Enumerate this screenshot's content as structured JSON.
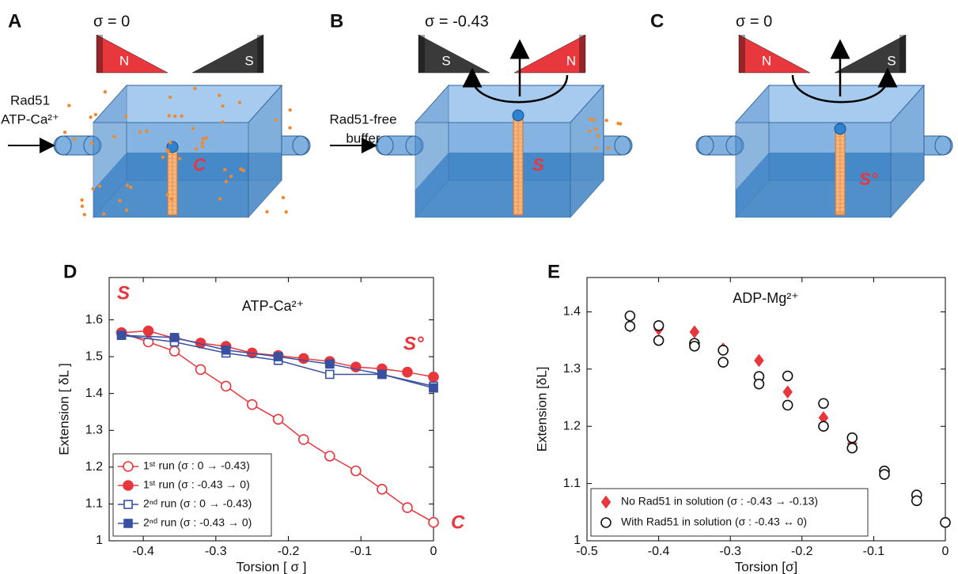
{
  "diagrams": [
    {
      "label": "A",
      "sigma": "σ = 0",
      "magnets": [
        {
          "text": "N",
          "color": "#e8383d"
        },
        {
          "text": "S",
          "color": "#3a3a3a"
        }
      ],
      "inlet": [
        "Rad51",
        "ATP-Ca²⁺"
      ],
      "state": "C"
    },
    {
      "label": "B",
      "sigma": "σ = -0.43",
      "magnets": [
        {
          "text": "S",
          "color": "#3a3a3a"
        },
        {
          "text": "N",
          "color": "#e8383d"
        }
      ],
      "inlet": [
        "Rad51-free",
        "buffer"
      ],
      "state": "S"
    },
    {
      "label": "C",
      "sigma": "σ = 0",
      "magnets": [
        {
          "text": "N",
          "color": "#e8383d"
        },
        {
          "text": "S",
          "color": "#3a3a3a"
        }
      ],
      "state": "S°"
    }
  ],
  "chart_data": [
    {
      "type": "line",
      "panel": "D",
      "title": "ATP-Ca²⁺",
      "xlabel": "Torsion [ σ ]",
      "ylabel": "Extension [ δL ]",
      "xlim": [
        -0.447,
        0
      ],
      "xticks": [
        -0.4,
        -0.3,
        -0.2,
        -0.1,
        0
      ],
      "ylim": [
        1,
        1.715
      ],
      "yticks": [
        1,
        1.1,
        1.2,
        1.3,
        1.4,
        1.5,
        1.6
      ],
      "annotations": [
        "S",
        "S°",
        "C"
      ],
      "annotation_color": "#e8363c",
      "legend": "lower left",
      "series": [
        {
          "name": "1ˢᵗ run (σ : 0 → -0.43)",
          "color": "#e8363c",
          "marker": "circle",
          "filled": false,
          "line": true,
          "x": [
            -0.43,
            -0.393,
            -0.357,
            -0.321,
            -0.286,
            -0.25,
            -0.214,
            -0.179,
            -0.143,
            -0.107,
            -0.071,
            -0.036,
            0
          ],
          "values": [
            1.565,
            1.54,
            1.515,
            1.465,
            1.42,
            1.37,
            1.33,
            1.275,
            1.23,
            1.19,
            1.14,
            1.09,
            1.05
          ]
        },
        {
          "name": "1ˢᵗ run (σ : -0.43 → 0)",
          "color": "#e8363c",
          "marker": "circle",
          "filled": true,
          "line": true,
          "x": [
            -0.43,
            -0.393,
            -0.357,
            -0.321,
            -0.286,
            -0.25,
            -0.214,
            -0.179,
            -0.143,
            -0.107,
            -0.071,
            -0.036,
            0
          ],
          "values": [
            1.565,
            1.57,
            1.55,
            1.537,
            1.528,
            1.51,
            1.503,
            1.495,
            1.487,
            1.472,
            1.467,
            1.458,
            1.445
          ]
        },
        {
          "name": "2ⁿᵈ run (σ : 0 → -0.43)",
          "color": "#3850a0",
          "marker": "square",
          "filled": false,
          "line": true,
          "x": [
            -0.43,
            -0.357,
            -0.286,
            -0.214,
            -0.143,
            -0.071,
            0
          ],
          "values": [
            1.558,
            1.54,
            1.51,
            1.49,
            1.452,
            1.452,
            1.42
          ]
        },
        {
          "name": "2ⁿᵈ run (σ : -0.43 → 0)",
          "color": "#3850a0",
          "marker": "square",
          "filled": true,
          "line": true,
          "x": [
            -0.43,
            -0.357,
            -0.286,
            -0.214,
            -0.143,
            -0.071,
            0
          ],
          "values": [
            1.558,
            1.552,
            1.518,
            1.5,
            1.48,
            1.452,
            1.415
          ]
        }
      ]
    },
    {
      "type": "scatter",
      "panel": "E",
      "title": "ADP-Mg²⁺",
      "xlabel": "Torsion [σ]",
      "ylabel": "Extension [δL]",
      "xlim": [
        -0.5,
        0
      ],
      "xticks": [
        -0.5,
        -0.4,
        -0.3,
        -0.2,
        -0.1,
        0
      ],
      "ylim": [
        1,
        1.46
      ],
      "yticks": [
        1,
        1.1,
        1.2,
        1.3,
        1.4
      ],
      "legend": "lower left",
      "series": [
        {
          "name": "No Rad51 in solution (σ : -0.43 → -0.13)",
          "color": "#e8363c",
          "marker": "diamond",
          "filled": true,
          "line": false,
          "x": [
            -0.44,
            -0.4,
            -0.35,
            -0.31,
            -0.26,
            -0.22,
            -0.17,
            -0.13
          ],
          "values": [
            1.375,
            1.37,
            1.365,
            1.335,
            1.315,
            1.26,
            1.215,
            1.17
          ]
        },
        {
          "name": "With Rad51 in solution (σ : -0.43 ↔ 0)",
          "color": "#111111",
          "marker": "circle",
          "filled": false,
          "line": false,
          "x": [
            -0.44,
            -0.44,
            -0.4,
            -0.4,
            -0.35,
            -0.35,
            -0.31,
            -0.31,
            -0.26,
            -0.26,
            -0.22,
            -0.22,
            -0.17,
            -0.17,
            -0.13,
            -0.13,
            -0.085,
            -0.085,
            -0.04,
            -0.04,
            0
          ],
          "values": [
            1.393,
            1.375,
            1.376,
            1.35,
            1.345,
            1.34,
            1.333,
            1.312,
            1.287,
            1.274,
            1.288,
            1.237,
            1.24,
            1.2,
            1.18,
            1.162,
            1.122,
            1.116,
            1.08,
            1.07,
            1.032
          ]
        }
      ]
    }
  ]
}
